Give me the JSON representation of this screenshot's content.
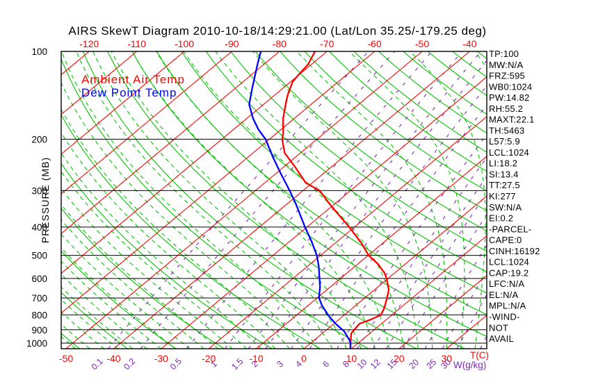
{
  "title": "AIRS SkewT Diagram 2010-10-18/14:29:21.00 (Lat/Lon 35.25/-179.25 deg)",
  "colors": {
    "isotherm": "#ff0000",
    "adiabat_green": "#00c400",
    "mixing_purple": "#7d26b0",
    "pressure_grid": "#000000",
    "temp_profile": "#ff0000",
    "dewpoint_profile": "#0000ff"
  },
  "panel": {
    "items": [
      "TP:100",
      "MW:N/A",
      "FRZ:595",
      "WB0:1024",
      "PW:14.82",
      "RH:55.2",
      "MAXT:22.1",
      "TH:5463",
      "L57:5.9",
      "LCL:1024",
      "LI:18.2",
      "SI:13.4",
      "TT:27.5",
      "KI:277",
      "SW:N/A",
      "EI:0.2",
      "-PARCEL-",
      "CAPE:0",
      "CINH:16192",
      "LCL:1024",
      "CAP:19.2",
      "LFC:N/A",
      "EL:N/A",
      "MPL:N/A",
      "-WIND-",
      "NOT",
      "AVAIL"
    ]
  },
  "chart_data": {
    "type": "line",
    "subtype": "skewt-logp",
    "title": "AIRS SkewT Diagram 2010-10-18/14:29:21.00 (Lat/Lon 35.25/-179.25 deg)",
    "x_axis": {
      "label": "T(C)",
      "top_ticks": [
        -120,
        -110,
        -100,
        -90,
        -80,
        -70,
        -60,
        -50,
        -40
      ],
      "bottom_ticks": [
        -50,
        -40,
        -30,
        -20,
        -10,
        0,
        10,
        20,
        30
      ]
    },
    "y_axis": {
      "label": "PRESSURE (MB)",
      "scale": "log",
      "ticks": [
        100,
        200,
        300,
        400,
        500,
        600,
        700,
        800,
        900,
        1000
      ],
      "range": [
        100,
        1045
      ]
    },
    "mixing_ratio": {
      "label": "W(g/kg)",
      "labels": [
        "0.1",
        "0.2",
        "0.5",
        "1",
        "1.5",
        "2",
        "3",
        "4",
        "6",
        "8",
        "10",
        "12",
        "15",
        "20",
        "25",
        "30"
      ],
      "line_values": [
        0.1,
        0.2,
        0.5,
        1,
        1.5,
        2,
        3,
        4,
        6,
        8,
        10,
        12,
        15,
        20,
        25,
        30,
        40
      ]
    },
    "isotherms_c": {
      "min": -160,
      "max": 40,
      "step": 10
    },
    "dry_adiabats_c": {
      "min": -60,
      "max": 180,
      "step": 10
    },
    "moist_adiabats_surface_c": {
      "min": -57,
      "max": 42,
      "step": 3
    },
    "series": [
      {
        "name": "Ambient Air Temp",
        "color": "#ff0000",
        "points_p_t": [
          [
            100,
            -72.5
          ],
          [
            111,
            -70.7
          ],
          [
            120,
            -70.1
          ],
          [
            127,
            -69.6
          ],
          [
            141,
            -67.3
          ],
          [
            150,
            -65.7
          ],
          [
            170,
            -62.3
          ],
          [
            190,
            -58.7
          ],
          [
            200,
            -57.3
          ],
          [
            223,
            -53.3
          ],
          [
            249,
            -47.6
          ],
          [
            282,
            -41.4
          ],
          [
            300,
            -36.5
          ],
          [
            340,
            -30.0
          ],
          [
            400,
            -21.1
          ],
          [
            454,
            -14.5
          ],
          [
            500,
            -9.9
          ],
          [
            535,
            -5.8
          ],
          [
            575,
            -2.1
          ],
          [
            600,
            -0.3
          ],
          [
            656,
            3.0
          ],
          [
            700,
            4.7
          ],
          [
            756,
            6.6
          ],
          [
            800,
            7.7
          ],
          [
            830,
            6.7
          ],
          [
            858,
            5.4
          ],
          [
            900,
            5.8
          ],
          [
            926,
            6.1
          ],
          [
            1000,
            8.4
          ],
          [
            1045,
            9.8
          ]
        ]
      },
      {
        "name": "Dew Point Temp",
        "color": "#0000ff",
        "points_p_t": [
          [
            100,
            -83.9
          ],
          [
            111,
            -81.3
          ],
          [
            134,
            -76.4
          ],
          [
            152,
            -73.0
          ],
          [
            170,
            -68.6
          ],
          [
            185,
            -64.8
          ],
          [
            200,
            -60.8
          ],
          [
            229,
            -55.0
          ],
          [
            262,
            -49.0
          ],
          [
            300,
            -42.8
          ],
          [
            332,
            -38.3
          ],
          [
            400,
            -30.4
          ],
          [
            447,
            -25.5
          ],
          [
            500,
            -20.8
          ],
          [
            544,
            -17.7
          ],
          [
            600,
            -14.4
          ],
          [
            641,
            -12.2
          ],
          [
            700,
            -9.6
          ],
          [
            744,
            -7.0
          ],
          [
            807,
            -3.0
          ],
          [
            858,
            0.4
          ],
          [
            911,
            4.1
          ],
          [
            978,
            7.5
          ],
          [
            1000,
            8.4
          ],
          [
            1045,
            9.8
          ]
        ]
      }
    ]
  }
}
